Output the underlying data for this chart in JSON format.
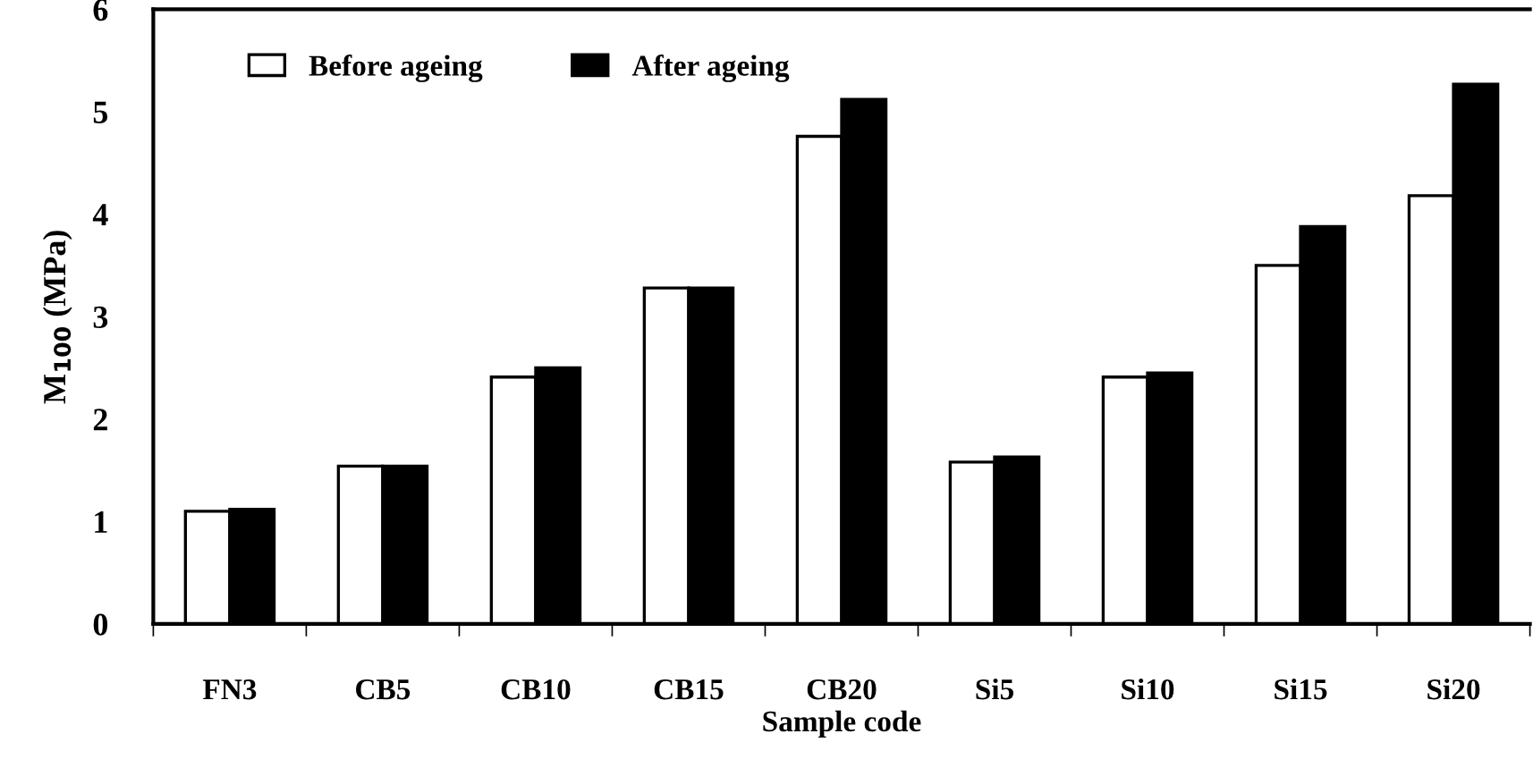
{
  "chart_data": {
    "type": "bar",
    "xlabel": "Sample code",
    "ylabel": "M$_{100}$ (MPa)",
    "categories": [
      "FN3",
      "CB5",
      "CB10",
      "CB15",
      "CB20",
      "Si5",
      "Si10",
      "Si15",
      "Si20"
    ],
    "series": [
      {
        "name": "Before ageing",
        "color": "#ffffff",
        "values": [
          1.1,
          1.54,
          2.41,
          3.28,
          4.76,
          1.58,
          2.41,
          3.5,
          4.18
        ]
      },
      {
        "name": "After ageing",
        "color": "#000000",
        "values": [
          1.12,
          1.54,
          2.5,
          3.28,
          5.12,
          1.63,
          2.45,
          3.88,
          5.27
        ]
      }
    ],
    "ylim": [
      0,
      6
    ],
    "yticks": [
      0,
      1,
      2,
      3,
      4,
      5,
      6
    ],
    "grid": false,
    "legend": "top left"
  }
}
